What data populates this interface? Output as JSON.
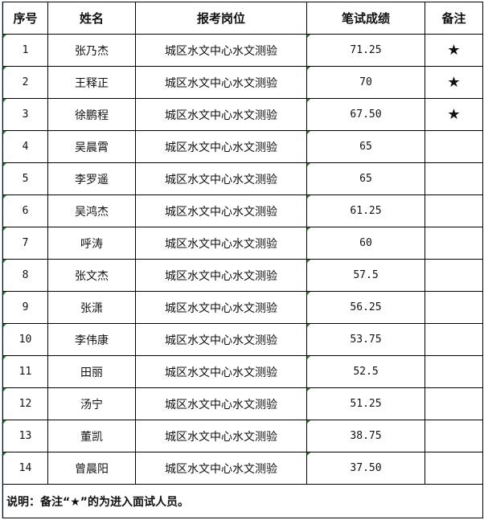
{
  "headers": {
    "no": "序号",
    "name": "姓名",
    "position": "报考岗位",
    "score": "笔试成绩",
    "remark": "备注"
  },
  "rows": [
    {
      "no": "1",
      "name": "张乃杰",
      "position": "城区水文中心水文测验",
      "score": "71.25",
      "remark": "★"
    },
    {
      "no": "2",
      "name": "王释正",
      "position": "城区水文中心水文测验",
      "score": "70",
      "remark": "★"
    },
    {
      "no": "3",
      "name": "徐鹏程",
      "position": "城区水文中心水文测验",
      "score": "67.50",
      "remark": "★"
    },
    {
      "no": "4",
      "name": "吴晨霄",
      "position": "城区水文中心水文测验",
      "score": "65",
      "remark": ""
    },
    {
      "no": "5",
      "name": "李罗遥",
      "position": "城区水文中心水文测验",
      "score": "65",
      "remark": ""
    },
    {
      "no": "6",
      "name": "吴鸿杰",
      "position": "城区水文中心水文测验",
      "score": "61.25",
      "remark": ""
    },
    {
      "no": "7",
      "name": "呼涛",
      "position": "城区水文中心水文测验",
      "score": "60",
      "remark": ""
    },
    {
      "no": "8",
      "name": "张文杰",
      "position": "城区水文中心水文测验",
      "score": "57.5",
      "remark": ""
    },
    {
      "no": "9",
      "name": "张潇",
      "position": "城区水文中心水文测验",
      "score": "56.25",
      "remark": ""
    },
    {
      "no": "10",
      "name": "李伟康",
      "position": "城区水文中心水文测验",
      "score": "53.75",
      "remark": ""
    },
    {
      "no": "11",
      "name": "田丽",
      "position": "城区水文中心水文测验",
      "score": "52.5",
      "remark": ""
    },
    {
      "no": "12",
      "name": "汤宁",
      "position": "城区水文中心水文测验",
      "score": "51.25",
      "remark": ""
    },
    {
      "no": "13",
      "name": "董凯",
      "position": "城区水文中心水文测验",
      "score": "38.75",
      "remark": ""
    },
    {
      "no": "14",
      "name": "曾晨阳",
      "position": "城区水文中心水文测验",
      "score": "37.50",
      "remark": ""
    }
  ],
  "note": "说明：备注“★”的为进入面试人员。"
}
